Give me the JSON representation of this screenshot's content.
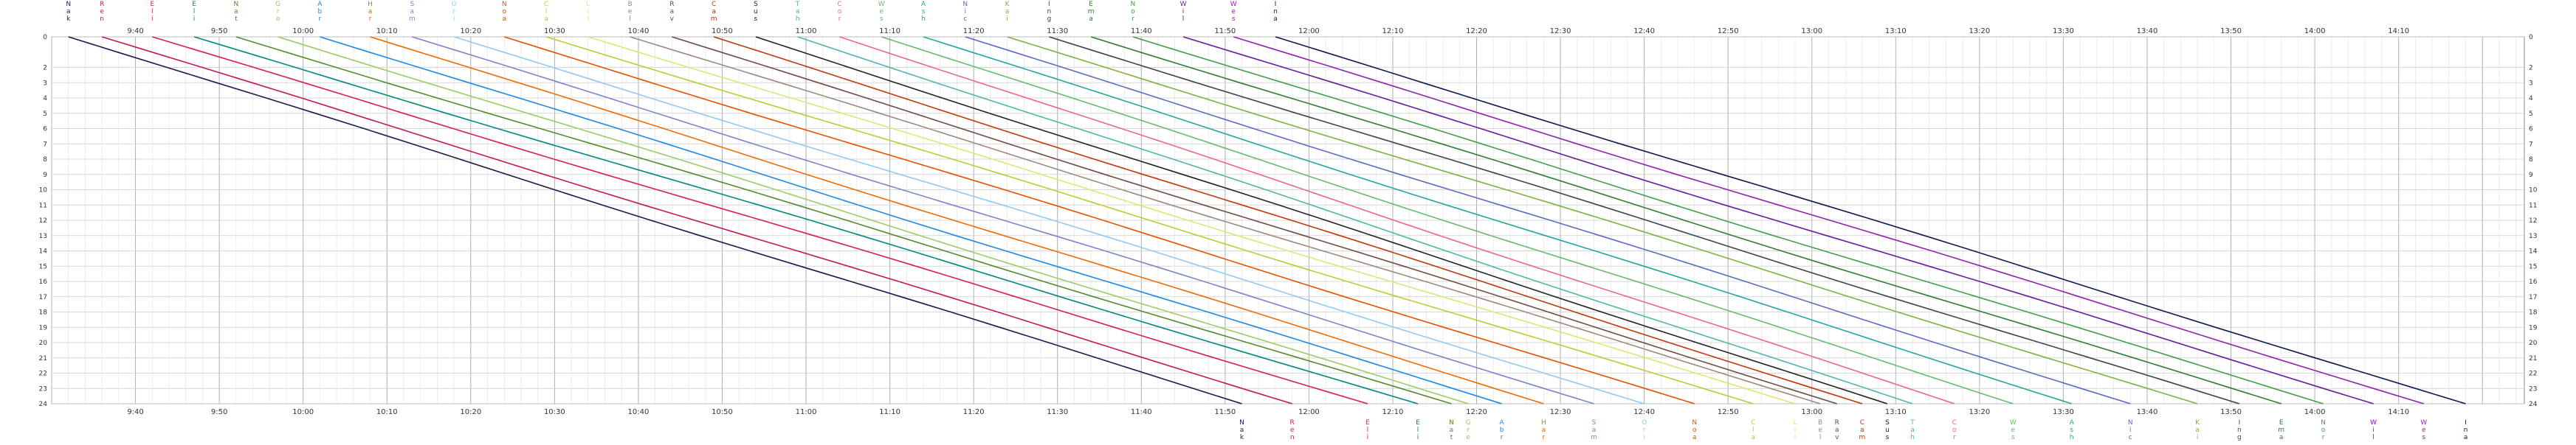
{
  "chart_data": {
    "type": "line",
    "title": "",
    "xlabel": "",
    "ylabel": "",
    "x_axis": {
      "type": "time",
      "range": [
        "09:30",
        "14:25"
      ],
      "tick_labels": [
        "9:40",
        "9:50",
        "10:00",
        "10:10",
        "10:20",
        "10:30",
        "10:40",
        "10:50",
        "11:00",
        "11:10",
        "11:20",
        "11:30",
        "11:40",
        "11:50",
        "12:00",
        "12:10",
        "12:20",
        "12:30",
        "12:40",
        "12:50",
        "13:00",
        "13:10",
        "13:20",
        "13:30",
        "13:40",
        "13:50",
        "14:00",
        "14:10"
      ]
    },
    "y_axis": {
      "direction": "top-to-bottom",
      "range": [
        0,
        24
      ],
      "left_tick_labels": [
        "0",
        "2",
        "3",
        "4",
        "5",
        "6",
        "7",
        "8",
        "9",
        "10",
        "11",
        "12",
        "13",
        "14",
        "15",
        "16",
        "17",
        "18",
        "19",
        "20",
        "21",
        "22",
        "23",
        "24"
      ],
      "right_tick_labels": [
        "0",
        "2",
        "3",
        "4",
        "5",
        "6",
        "7",
        "8",
        "9",
        "10",
        "11",
        "12",
        "13",
        "14",
        "15",
        "16",
        "17",
        "18",
        "19",
        "20",
        "21",
        "22",
        "23",
        "24"
      ]
    },
    "grid": true,
    "series": [
      {
        "name": "Nak",
        "color": "#1a1a4e",
        "start": "09:32",
        "end": "11:52"
      },
      {
        "name": "Ren",
        "color": "#c2185b",
        "start": "09:36",
        "end": "11:58"
      },
      {
        "name": "Eli",
        "color": "#d81b60",
        "start": "09:42",
        "end": "12:07"
      },
      {
        "name": "Eli",
        "color": "#00897b",
        "start": "09:47",
        "end": "12:13"
      },
      {
        "name": "Nat",
        "color": "#558b2f",
        "start": "09:52",
        "end": "12:17"
      },
      {
        "name": "Gre",
        "color": "#9ccc65",
        "start": "09:57",
        "end": "12:19"
      },
      {
        "name": "Abr",
        "color": "#1e88e5",
        "start": "10:02",
        "end": "12:23"
      },
      {
        "name": "Har",
        "color": "#ef6c00",
        "start": "10:08",
        "end": "12:28"
      },
      {
        "name": "Sam",
        "color": "#7986cb",
        "start": "10:13",
        "end": "12:34"
      },
      {
        "name": "Ori",
        "color": "#90caf9",
        "start": "10:18",
        "end": "12:40"
      },
      {
        "name": "Noa",
        "color": "#e65100",
        "start": "10:24",
        "end": "12:46"
      },
      {
        "name": "Cla",
        "color": "#c0ca33",
        "start": "10:29",
        "end": "12:53"
      },
      {
        "name": "Lil",
        "color": "#dce775",
        "start": "10:34",
        "end": "12:58"
      },
      {
        "name": "Bel",
        "color": "#a1887f",
        "start": "10:39",
        "end": "13:01"
      },
      {
        "name": "Rav",
        "color": "#6d4c41",
        "start": "10:44",
        "end": "13:03"
      },
      {
        "name": "Cam",
        "color": "#bf360c",
        "start": "10:49",
        "end": "13:06"
      },
      {
        "name": "Sus",
        "color": "#212121",
        "start": "10:54",
        "end": "13:09"
      },
      {
        "name": "Tah",
        "color": "#4db6ac",
        "start": "10:59",
        "end": "13:12"
      },
      {
        "name": "Cor",
        "color": "#f06292",
        "start": "11:04",
        "end": "13:17"
      },
      {
        "name": "Wes",
        "color": "#66bb6a",
        "start": "11:09",
        "end": "13:24"
      },
      {
        "name": "Ash",
        "color": "#26a69a",
        "start": "11:14",
        "end": "13:31"
      },
      {
        "name": "Nic",
        "color": "#5c6bc0",
        "start": "11:19",
        "end": "13:38"
      },
      {
        "name": "Kai",
        "color": "#7cb342",
        "start": "11:24",
        "end": "13:46"
      },
      {
        "name": "Ing",
        "color": "#37474f",
        "start": "11:29",
        "end": "13:51"
      },
      {
        "name": "Ema",
        "color": "#2e7d32",
        "start": "11:34",
        "end": "13:56"
      },
      {
        "name": "Nor",
        "color": "#43a047",
        "start": "11:39",
        "end": "14:01"
      },
      {
        "name": "Wil",
        "color": "#6a1b9a",
        "start": "11:45",
        "end": "14:07"
      },
      {
        "name": "Wes",
        "color": "#8e24aa",
        "start": "11:51",
        "end": "14:13"
      },
      {
        "name": "Ina",
        "color": "#0d1b4f",
        "start": "11:56",
        "end": "14:18"
      }
    ]
  }
}
